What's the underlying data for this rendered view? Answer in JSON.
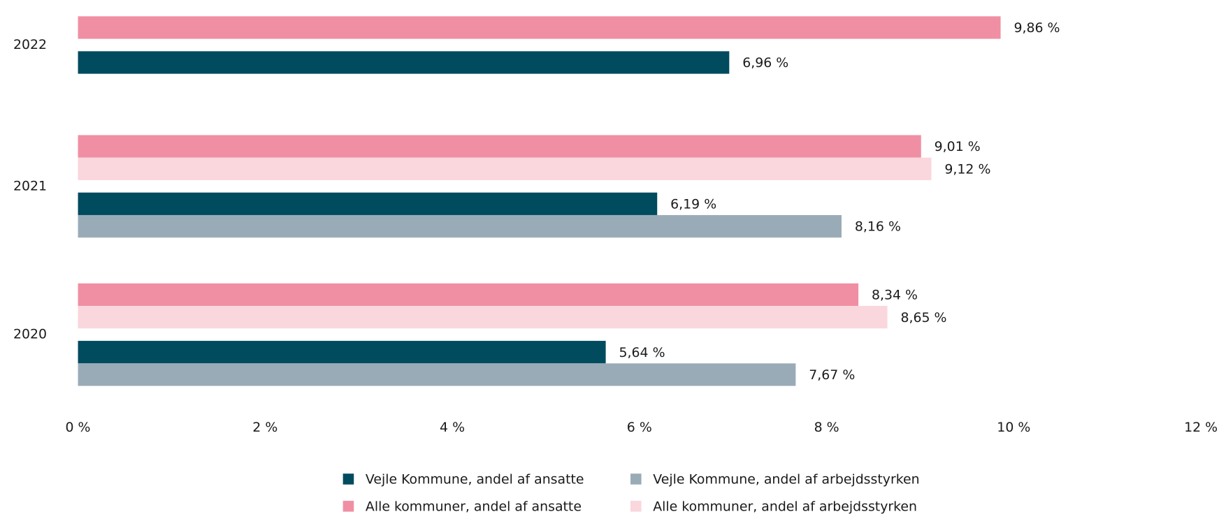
{
  "chart_data": {
    "type": "bar",
    "orientation": "horizontal",
    "categories": [
      "2022",
      "2021",
      "2020"
    ],
    "series": [
      {
        "name": "Vejle Kommune, andel af ansatte",
        "color": "#004b5e",
        "values": [
          6.96,
          6.19,
          5.64
        ],
        "value_labels": [
          "6,96 %",
          "6,19 %",
          "5,64 %"
        ]
      },
      {
        "name": "Vejle Kommune, andel af arbejdsstyrken",
        "color": "#9aabb8",
        "values": [
          null,
          8.16,
          7.67
        ],
        "value_labels": [
          null,
          "8,16 %",
          "7,67 %"
        ]
      },
      {
        "name": "Alle kommuner, andel af ansatte",
        "color": "#f08fa3",
        "values": [
          9.86,
          9.01,
          8.34
        ],
        "value_labels": [
          "9,86 %",
          "9,01 %",
          "8,34 %"
        ]
      },
      {
        "name": "Alle kommuner, andel af arbejdsstyrken",
        "color": "#fad6dd",
        "values": [
          null,
          9.12,
          8.65
        ],
        "value_labels": [
          null,
          "9,12 %",
          "8,65 %"
        ]
      }
    ],
    "xlim": [
      0,
      12
    ],
    "xticks": [
      {
        "value": 0,
        "label": "0 %"
      },
      {
        "value": 2,
        "label": "2 %"
      },
      {
        "value": 4,
        "label": "4 %"
      },
      {
        "value": 6,
        "label": "6 %"
      },
      {
        "value": 8,
        "label": "8 %"
      },
      {
        "value": 10,
        "label": "10 %"
      },
      {
        "value": 12,
        "label": "12 %"
      }
    ],
    "grid": false,
    "legend": "bottom"
  }
}
